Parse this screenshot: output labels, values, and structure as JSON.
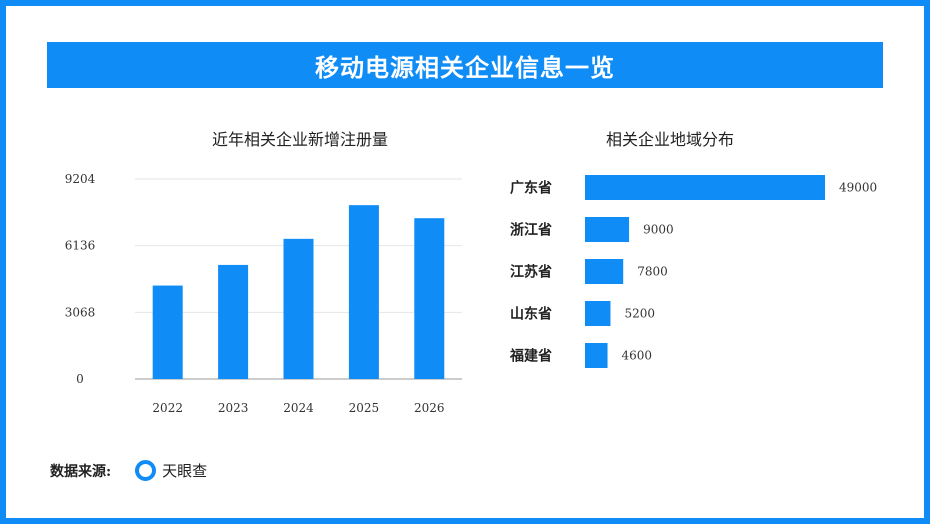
{
  "title": "移动电源相关企业信息一览",
  "colors": {
    "accent": "#0f8cf5"
  },
  "footer": {
    "label": "数据来源:",
    "source": "天眼查",
    "icon": "ring-icon"
  },
  "chart_data": [
    {
      "type": "bar",
      "title": "近年相关企业新增注册量",
      "categories": [
        "2022",
        "2023",
        "2024",
        "2025",
        "2026"
      ],
      "values": [
        4300,
        5250,
        6450,
        8000,
        7400
      ],
      "yticks": [
        "0",
        "3068",
        "6136",
        "9204"
      ],
      "ylim": [
        0,
        9204
      ],
      "grid": true
    },
    {
      "type": "bar",
      "orientation": "horizontal",
      "title": "相关企业地域分布",
      "categories": [
        "广东省",
        "浙江省",
        "江苏省",
        "山东省",
        "福建省"
      ],
      "values": [
        49000,
        9000,
        7800,
        5200,
        4600
      ],
      "value_labels": [
        "49000",
        "9000",
        "7800",
        "5200",
        "4600"
      ]
    }
  ]
}
